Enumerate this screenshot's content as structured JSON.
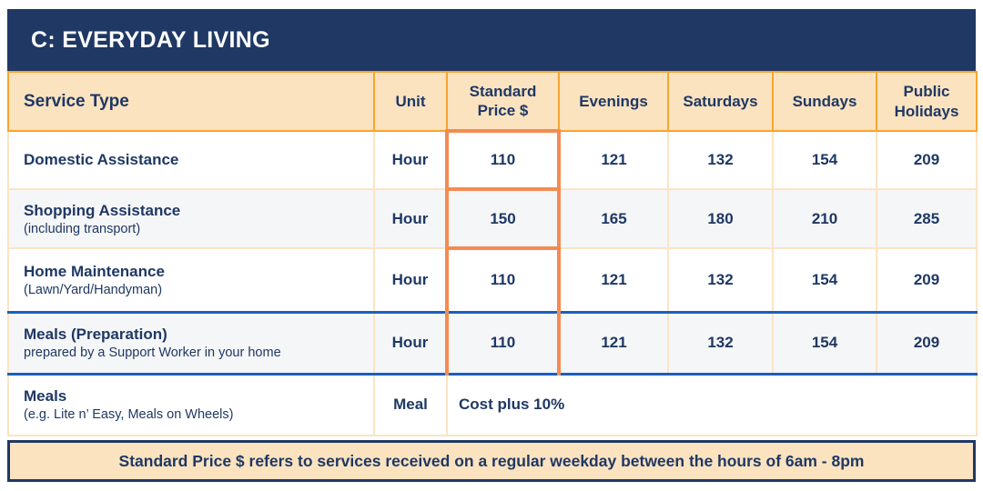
{
  "title": "C: EVERYDAY LIVING",
  "colors": {
    "navy": "#1F3864",
    "tan": "#FBE3C0",
    "orange_grid": "#F7A42F",
    "salmon_highlight": "#F58B52",
    "peach_grid": "#FBE4C6",
    "alt_row": "#F5F6F7",
    "blue_divider": "#1A5FBE"
  },
  "table": {
    "columns": [
      "Service Type",
      "Unit",
      "Standard Price $",
      "Evenings",
      "Saturdays",
      "Sundays",
      "Public Holidays"
    ],
    "rows": [
      {
        "service": "Domestic Assistance",
        "unit": "Hour",
        "standard": "110",
        "evenings": "121",
        "saturdays": "132",
        "sundays": "154",
        "public_holidays": "209"
      },
      {
        "service": "Shopping Assistance",
        "subtitle": "(including transport)",
        "unit": "Hour",
        "standard": "150",
        "evenings": "165",
        "saturdays": "180",
        "sundays": "210",
        "public_holidays": "285"
      },
      {
        "service": "Home Maintenance",
        "subtitle": "(Lawn/Yard/Handyman)",
        "unit": "Hour",
        "standard": "110",
        "evenings": "121",
        "saturdays": "132",
        "sundays": "154",
        "public_holidays": "209"
      },
      {
        "service": "Meals (Preparation)",
        "subtitle": "prepared by a Support Worker in your home",
        "unit": "Hour",
        "standard": "110",
        "evenings": "121",
        "saturdays": "132",
        "sundays": "154",
        "public_holidays": "209"
      },
      {
        "service": "Meals",
        "subtitle": "(e.g. Lite n’ Easy, Meals on Wheels)",
        "unit": "Meal",
        "merged": "Cost plus 10%"
      }
    ],
    "footnote": "Standard Price $ refers to services received on a regular weekday between the hours of 6am - 8pm"
  }
}
